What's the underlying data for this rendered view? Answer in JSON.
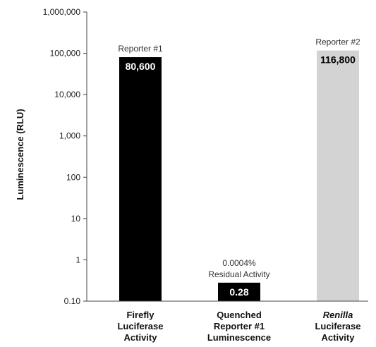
{
  "chart_data": {
    "type": "bar",
    "title": "",
    "ylabel": "Luminescence (RLU)",
    "yscale": "log",
    "ylim": [
      0.1,
      1000000
    ],
    "yticks": [
      {
        "value": 1000000,
        "label": "1,000,000"
      },
      {
        "value": 100000,
        "label": "100,000"
      },
      {
        "value": 10000,
        "label": "10,000"
      },
      {
        "value": 1000,
        "label": "1,000"
      },
      {
        "value": 100,
        "label": "100"
      },
      {
        "value": 10,
        "label": "10"
      },
      {
        "value": 1,
        "label": "1"
      },
      {
        "value": 0.1,
        "label": "0.10"
      }
    ],
    "grid": false,
    "bars": [
      {
        "category_lines": [
          {
            "text": "Firefly",
            "italic": false
          },
          {
            "text": "Luciferase",
            "italic": false
          },
          {
            "text": "Activity",
            "italic": false
          }
        ],
        "value": 80600,
        "value_label": "80,600",
        "annotation": [
          "Reporter #1"
        ],
        "color": "#000000",
        "label_color": "#ffffff"
      },
      {
        "category_lines": [
          {
            "text": "Quenched",
            "italic": false
          },
          {
            "text": "Reporter #1",
            "italic": false
          },
          {
            "text": "Luminescence",
            "italic": false
          }
        ],
        "value": 0.28,
        "value_label": "0.28",
        "annotation": [
          "0.0004%",
          "Residual Activity"
        ],
        "color": "#000000",
        "label_color": "#ffffff"
      },
      {
        "category_lines": [
          {
            "text": "Renilla",
            "italic": true
          },
          {
            "text": "Luciferase",
            "italic": false
          },
          {
            "text": "Activity",
            "italic": false
          }
        ],
        "value": 116800,
        "value_label": "116,800",
        "annotation": [
          "Reporter #2"
        ],
        "color": "#d3d3d3",
        "label_color": "#000000"
      }
    ]
  }
}
